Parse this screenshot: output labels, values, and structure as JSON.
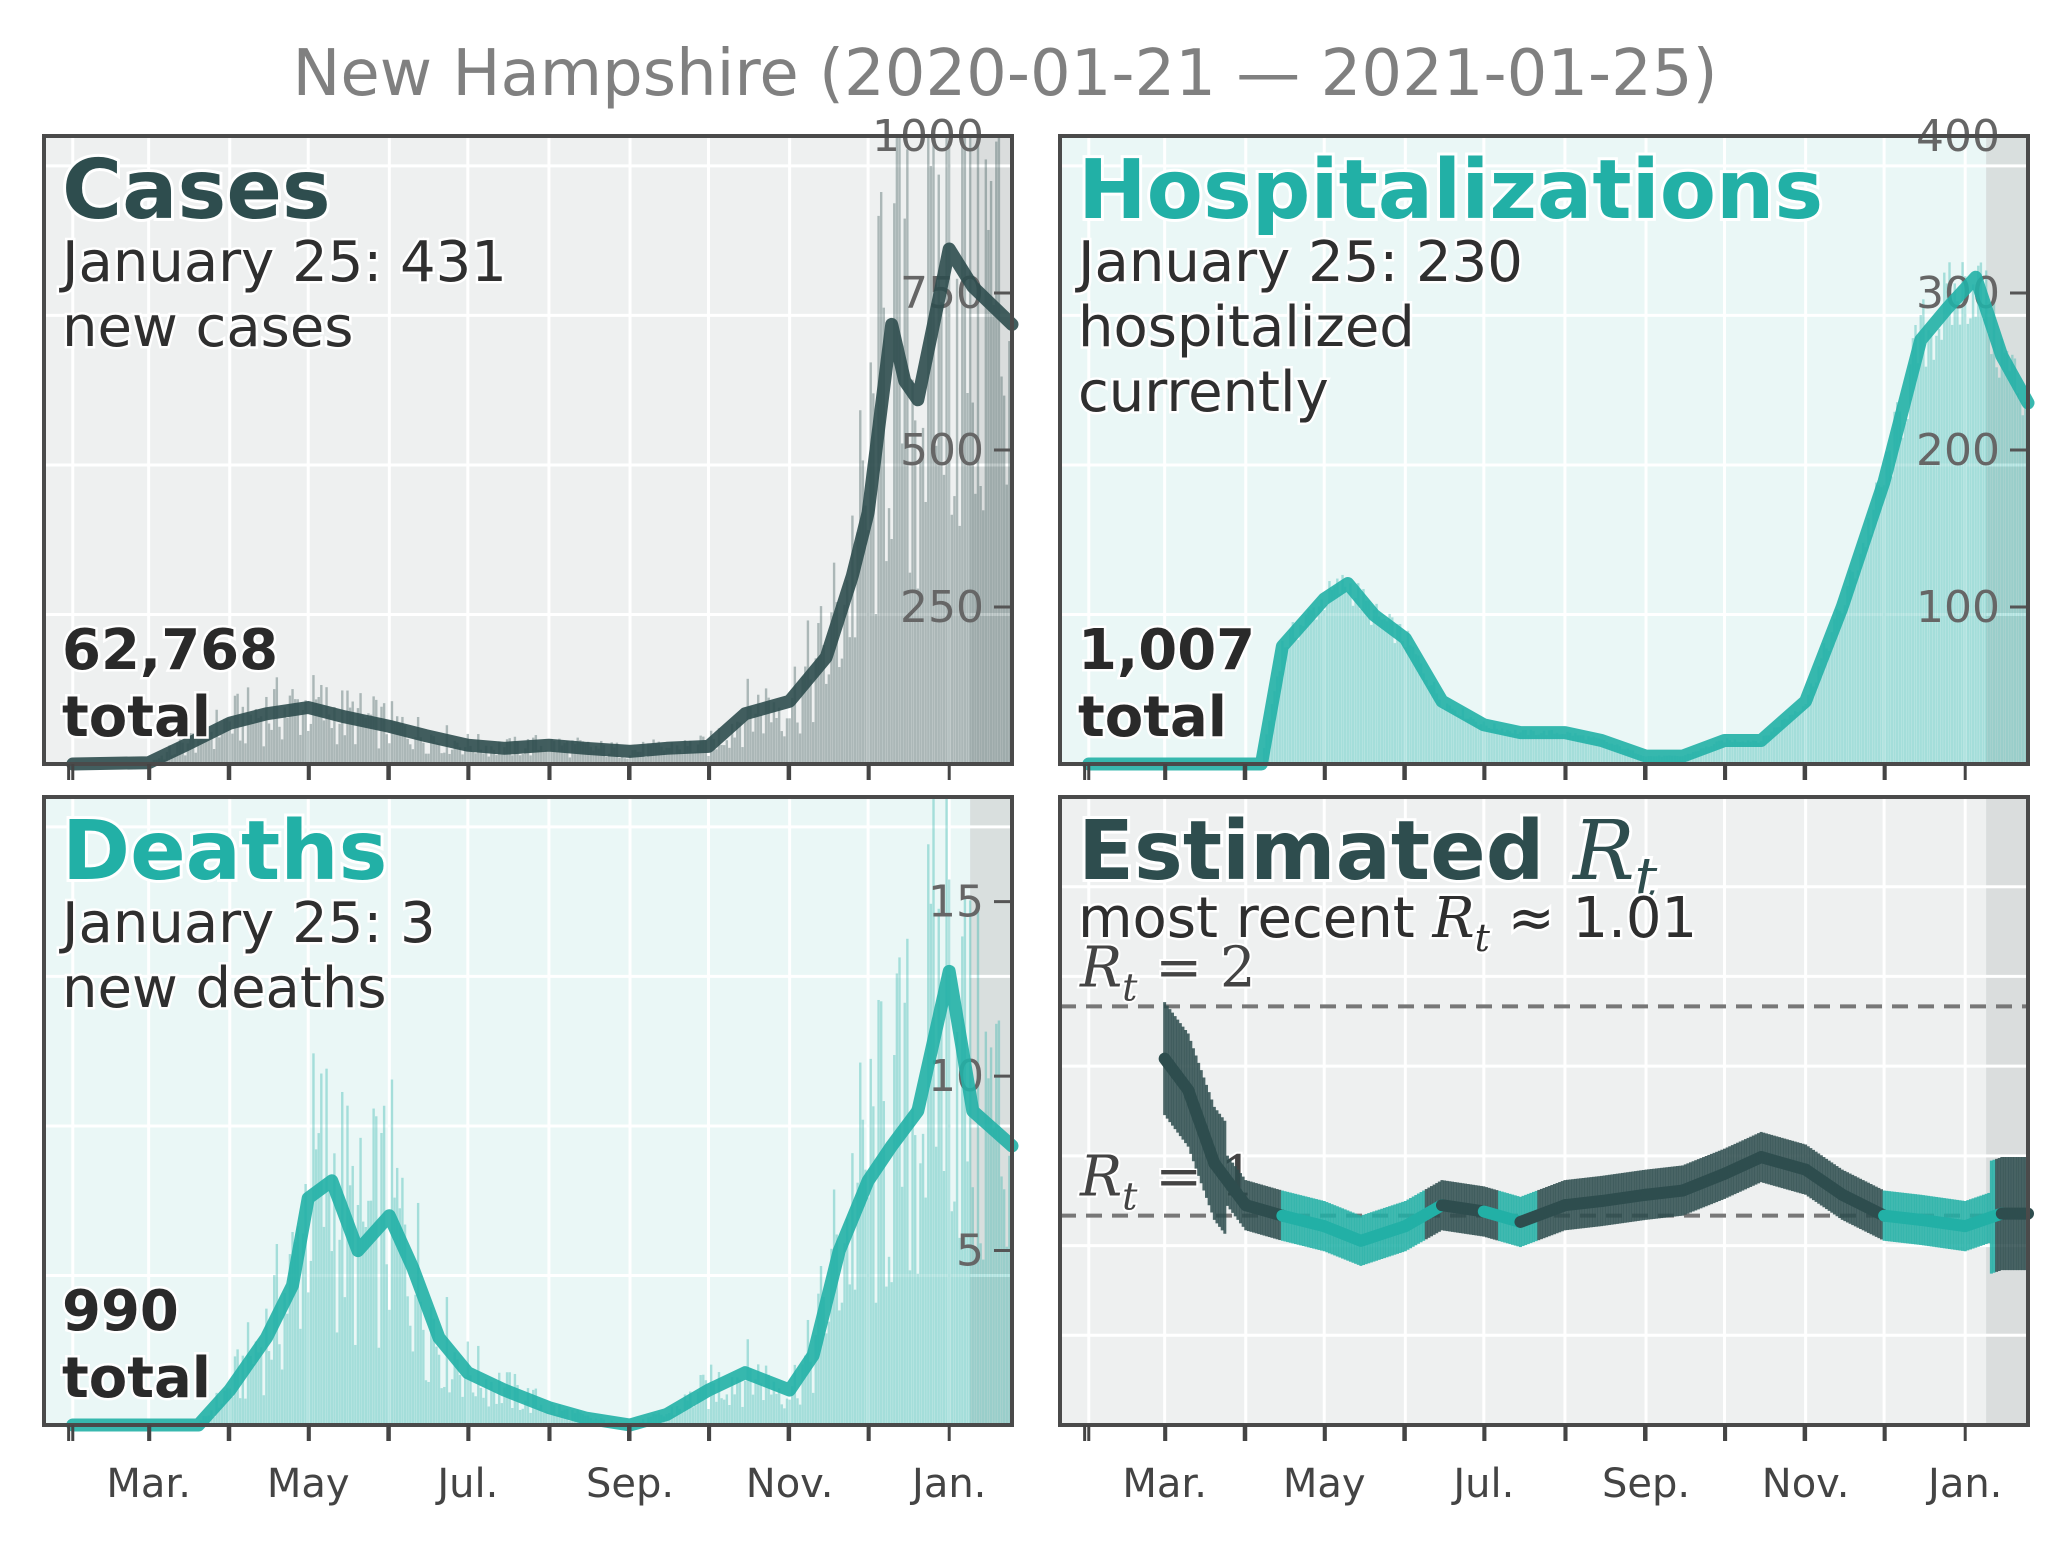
{
  "title": "New Hampshire (2020-01-21 — 2021-01-25)",
  "colors": {
    "dark": "#2e4d4e",
    "teal": "#22b0a6",
    "bg_gray": "#eef0f0",
    "bg_teal": "#eaf7f6",
    "recent_shade": "#d5d8d8"
  },
  "chart_data": [
    {
      "type": "bar",
      "panel": "cases",
      "title": "Cases",
      "subtitle_line1": "January 25: 431",
      "subtitle_line2": "new cases",
      "total_value": "62,768",
      "total_word": "total",
      "x_axis": "date",
      "x_range": [
        "2020-01-21",
        "2021-01-25"
      ],
      "ylim": [
        0,
        1000
      ],
      "yticks": [
        "250",
        "500",
        "750",
        "1000"
      ],
      "xticks": [
        "Mar.",
        "May",
        "Jul.",
        "Sep.",
        "Nov.",
        "Jan."
      ],
      "grid": true,
      "series": [
        {
          "kind": "moving-average",
          "x": [
            "2020-02-01",
            "2020-03-01",
            "2020-03-15",
            "2020-04-01",
            "2020-04-15",
            "2020-05-01",
            "2020-05-15",
            "2020-06-01",
            "2020-06-15",
            "2020-07-01",
            "2020-07-15",
            "2020-08-01",
            "2020-08-15",
            "2020-09-01",
            "2020-09-15",
            "2020-10-01",
            "2020-10-15",
            "2020-11-01",
            "2020-11-15",
            "2020-11-25",
            "2020-12-01",
            "2020-12-10",
            "2020-12-15",
            "2020-12-20",
            "2021-01-01",
            "2021-01-10",
            "2021-01-25"
          ],
          "y": [
            0,
            2,
            30,
            65,
            80,
            90,
            75,
            60,
            45,
            30,
            25,
            30,
            25,
            20,
            25,
            28,
            80,
            100,
            170,
            300,
            400,
            700,
            610,
            580,
            820,
            760,
            700
          ]
        }
      ]
    },
    {
      "type": "bar",
      "panel": "hospitalizations",
      "title": "Hospitalizations",
      "subtitle_line1": "January 25: 230",
      "subtitle_line2": "hospitalized",
      "subtitle_line3": "currently",
      "total_value": "1,007",
      "total_word": "total",
      "x_axis": "date",
      "x_range": [
        "2020-01-21",
        "2021-01-25"
      ],
      "ylim": [
        0,
        400
      ],
      "yticks": [
        "100",
        "200",
        "300",
        "400"
      ],
      "xticks": [
        "Mar.",
        "May",
        "Jul.",
        "Sep.",
        "Nov.",
        "Jan."
      ],
      "grid": true,
      "series": [
        {
          "kind": "currently-hospitalized",
          "x": [
            "2020-02-01",
            "2020-04-07",
            "2020-04-15",
            "2020-05-01",
            "2020-05-10",
            "2020-05-20",
            "2020-06-01",
            "2020-06-15",
            "2020-07-01",
            "2020-07-15",
            "2020-08-01",
            "2020-08-15",
            "2020-09-01",
            "2020-09-15",
            "2020-10-01",
            "2020-10-15",
            "2020-11-01",
            "2020-11-15",
            "2020-12-01",
            "2020-12-15",
            "2020-12-25",
            "2021-01-05",
            "2021-01-15",
            "2021-01-25"
          ],
          "y": [
            0,
            0,
            75,
            105,
            115,
            95,
            80,
            40,
            25,
            20,
            20,
            15,
            5,
            5,
            15,
            15,
            40,
            100,
            180,
            270,
            290,
            310,
            260,
            230
          ]
        }
      ]
    },
    {
      "type": "bar",
      "panel": "deaths",
      "title": "Deaths",
      "subtitle_line1": "January 25: 3",
      "subtitle_line2": "new deaths",
      "total_value": "990",
      "total_word": "total",
      "x_axis": "date",
      "x_range": [
        "2020-01-21",
        "2021-01-25"
      ],
      "ylim": [
        0,
        18
      ],
      "yticks": [
        "5",
        "10",
        "15"
      ],
      "xticks": [
        "Mar.",
        "May",
        "Jul.",
        "Sep.",
        "Nov.",
        "Jan."
      ],
      "grid": true,
      "series": [
        {
          "kind": "moving-average",
          "x": [
            "2020-02-01",
            "2020-03-20",
            "2020-04-01",
            "2020-04-15",
            "2020-04-25",
            "2020-05-01",
            "2020-05-10",
            "2020-05-20",
            "2020-06-01",
            "2020-06-10",
            "2020-06-20",
            "2020-07-01",
            "2020-07-15",
            "2020-08-01",
            "2020-08-15",
            "2020-09-01",
            "2020-09-15",
            "2020-10-01",
            "2020-10-15",
            "2020-11-01",
            "2020-11-10",
            "2020-11-20",
            "2020-12-01",
            "2020-12-10",
            "2020-12-20",
            "2021-01-01",
            "2021-01-10",
            "2021-01-25"
          ],
          "y": [
            0,
            0,
            1,
            2.5,
            4,
            6.5,
            7,
            5,
            6,
            4.5,
            2.5,
            1.5,
            1,
            0.5,
            0.2,
            0,
            0.3,
            1,
            1.5,
            1,
            2,
            5,
            7,
            8,
            9,
            13,
            9,
            8
          ]
        }
      ]
    },
    {
      "type": "line",
      "panel": "rt",
      "title_main": "Estimated ",
      "title_symbol": "R",
      "title_subscript": "t",
      "subtitle_prefix": "most recent ",
      "subtitle_symbol": "R",
      "subtitle_subscript": "t",
      "subtitle_suffix": " ≈ 1.01",
      "x_axis": "date",
      "x_range": [
        "2020-01-21",
        "2021-01-25"
      ],
      "ylim": [
        0,
        3
      ],
      "xticks": [
        "Mar.",
        "May",
        "Jul.",
        "Sep.",
        "Nov.",
        "Jan."
      ],
      "grid": true,
      "reference_lines": [
        {
          "value": 2,
          "label_symbol": "R",
          "label_subscript": "t",
          "label_suffix": " = 2"
        },
        {
          "value": 1,
          "label_symbol": "R",
          "label_subscript": "t",
          "label_suffix": " = 1"
        }
      ],
      "series": [
        {
          "kind": "rt-estimate",
          "x": [
            "2020-03-01",
            "2020-03-10",
            "2020-03-20",
            "2020-04-01",
            "2020-04-15",
            "2020-05-01",
            "2020-05-15",
            "2020-06-01",
            "2020-06-15",
            "2020-07-01",
            "2020-07-15",
            "2020-08-01",
            "2020-08-15",
            "2020-09-01",
            "2020-09-15",
            "2020-10-01",
            "2020-10-15",
            "2020-11-01",
            "2020-11-15",
            "2020-12-01",
            "2020-12-15",
            "2021-01-01",
            "2021-01-15",
            "2021-01-25"
          ],
          "y": [
            1.75,
            1.6,
            1.25,
            1.05,
            1.0,
            0.95,
            0.88,
            0.95,
            1.05,
            1.02,
            0.97,
            1.05,
            1.07,
            1.1,
            1.12,
            1.2,
            1.28,
            1.22,
            1.1,
            1.0,
            0.98,
            0.95,
            1.01,
            1.01
          ]
        }
      ]
    }
  ]
}
